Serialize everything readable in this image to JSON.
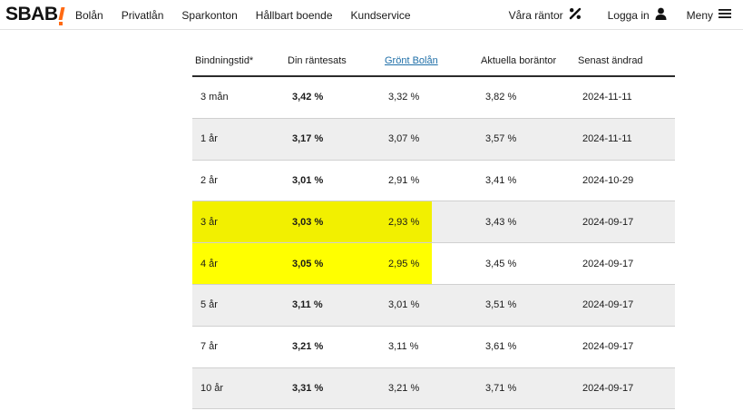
{
  "header": {
    "logo": "SBAB",
    "nav_left": [
      "Bolån",
      "Privatlån",
      "Sparkonton",
      "Hållbart boende",
      "Kundservice"
    ],
    "rates_label": "Våra räntor",
    "rates_icon": "percent-icon",
    "login_label": "Logga in",
    "login_icon": "user-icon",
    "menu_label": "Meny",
    "menu_icon": "hamburger-icon"
  },
  "table": {
    "columns": [
      "Bindningstid*",
      "Din räntesats",
      "Grönt Bolån",
      "Aktuella boräntor",
      "Senast ändrad"
    ],
    "rows": [
      {
        "term": "3 mån",
        "your_rate": "3,42 %",
        "green": "3,32 %",
        "current": "3,82 %",
        "changed": "2024-11-11",
        "highlighted": false
      },
      {
        "term": "1 år",
        "your_rate": "3,17 %",
        "green": "3,07 %",
        "current": "3,57 %",
        "changed": "2024-11-11",
        "highlighted": false
      },
      {
        "term": "2 år",
        "your_rate": "3,01 %",
        "green": "2,91 %",
        "current": "3,41 %",
        "changed": "2024-10-29",
        "highlighted": false
      },
      {
        "term": "3 år",
        "your_rate": "3,03 %",
        "green": "2,93 %",
        "current": "3,43 %",
        "changed": "2024-09-17",
        "highlighted": true
      },
      {
        "term": "4 år",
        "your_rate": "3,05 %",
        "green": "2,95 %",
        "current": "3,45 %",
        "changed": "2024-09-17",
        "highlighted": true
      },
      {
        "term": "5 år",
        "your_rate": "3,11 %",
        "green": "3,01 %",
        "current": "3,51 %",
        "changed": "2024-09-17",
        "highlighted": false
      },
      {
        "term": "7 år",
        "your_rate": "3,21 %",
        "green": "3,11 %",
        "current": "3,61 %",
        "changed": "2024-09-17",
        "highlighted": false
      },
      {
        "term": "10 år",
        "your_rate": "3,31 %",
        "green": "3,21 %",
        "current": "3,71 %",
        "changed": "2024-09-17",
        "highlighted": false
      }
    ]
  },
  "colors": {
    "accent": "#ff6a13",
    "link": "#1f6fa8",
    "highlight": "#ffff00"
  }
}
